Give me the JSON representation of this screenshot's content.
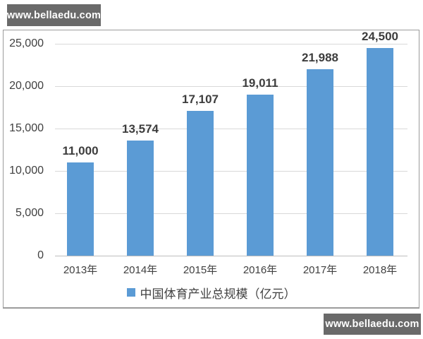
{
  "watermark": {
    "text": "www.bellaedu.com",
    "bg_color": "#6a6a6a",
    "text_color": "#ffffff"
  },
  "chart_data": {
    "type": "bar",
    "title": "",
    "xlabel": "",
    "ylabel": "",
    "categories": [
      "2013年",
      "2014年",
      "2015年",
      "2016年",
      "2017年",
      "2018年"
    ],
    "values": [
      11000,
      13574,
      17107,
      19011,
      21988,
      24500
    ],
    "value_labels": [
      "11,000",
      "13,574",
      "17,107",
      "19,011",
      "21,988",
      "24,500"
    ],
    "legend": "中国体育产业总规模（亿元）",
    "legend_position": "bottom",
    "grid": true,
    "ylim": [
      0,
      25000
    ],
    "yticks": [
      0,
      5000,
      10000,
      15000,
      20000,
      25000
    ],
    "ytick_labels": [
      "0",
      "5,000",
      "10,000",
      "15,000",
      "20,000",
      "25,000"
    ],
    "bar_color": "#5b9bd5",
    "grid_color": "#d9d9d9",
    "axis_line_color": "#bdbdbd",
    "text_color": "#404040"
  }
}
